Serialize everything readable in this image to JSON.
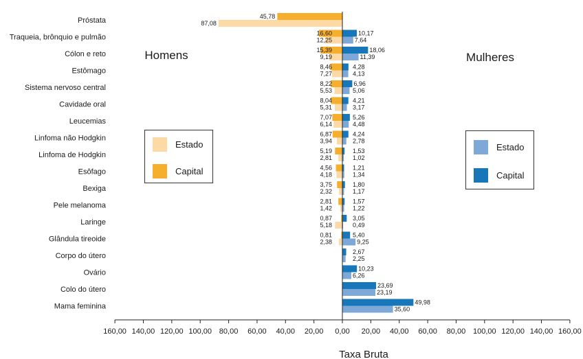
{
  "chart_data": {
    "type": "bar",
    "orientation": "horizontal-diverging",
    "categories": [
      "Próstata",
      "Traqueia, brônquio e pulmão",
      "Cólon e reto",
      "Estômago",
      "Sistema nervoso central",
      "Cavidade oral",
      "Leucemias",
      "Linfoma não Hodgkin",
      "Linfoma de Hodgkin",
      "Esôfago",
      "Bexiga",
      "Pele melanoma",
      "Laringe",
      "Glândula tireoide",
      "Corpo do útero",
      "Ovário",
      "Colo do útero",
      "Mama feminina"
    ],
    "series": [
      {
        "name": "Capital",
        "side": "Homens",
        "color": "#f6ae2d",
        "values": [
          45.78,
          16.6,
          15.39,
          8.46,
          8.22,
          8.04,
          7.07,
          6.87,
          5.19,
          4.56,
          3.75,
          2.81,
          0.87,
          0.81,
          null,
          null,
          null,
          null
        ],
        "labels": [
          "45,78",
          "16,60",
          "15,39",
          "8,46",
          "8,22",
          "8,04",
          "7,07",
          "6,87",
          "5,19",
          "4,56",
          "3,75",
          "2,81",
          "0,87",
          "0,81",
          "",
          "",
          "",
          ""
        ]
      },
      {
        "name": "Estado",
        "side": "Homens",
        "color": "#fdd9a6",
        "values": [
          87.08,
          12.25,
          9.19,
          7.27,
          5.53,
          5.31,
          6.14,
          3.94,
          2.81,
          4.18,
          2.32,
          1.42,
          5.18,
          2.38,
          null,
          null,
          null,
          null
        ],
        "labels": [
          "87,08",
          "12,25",
          "9,19",
          "7,27",
          "5,53",
          "5,31",
          "6,14",
          "3,94",
          "2,81",
          "4,18",
          "2,32",
          "1,42",
          "5,18",
          "2,38",
          "",
          "",
          "",
          ""
        ]
      },
      {
        "name": "Capital",
        "side": "Mulheres",
        "color": "#1877b8",
        "values": [
          null,
          10.17,
          18.06,
          4.28,
          6.96,
          4.21,
          5.26,
          4.24,
          1.53,
          1.21,
          1.8,
          1.57,
          3.05,
          5.4,
          2.67,
          10.23,
          23.69,
          49.98
        ],
        "labels": [
          "",
          "10,17",
          "18,06",
          "4,28",
          "6,96",
          "4,21",
          "5,26",
          "4,24",
          "1,53",
          "1,21",
          "1,80",
          "1,57",
          "3,05",
          "5,40",
          "2,67",
          "10,23",
          "23,69",
          "49,98"
        ]
      },
      {
        "name": "Estado",
        "side": "Mulheres",
        "color": "#7ea8d8",
        "values": [
          null,
          7.64,
          11.39,
          4.13,
          5.06,
          3.17,
          4.48,
          2.78,
          1.02,
          1.34,
          1.17,
          1.22,
          0.49,
          9.25,
          2.25,
          6.26,
          23.19,
          35.6
        ],
        "labels": [
          "",
          "7,64",
          "11,39",
          "4,13",
          "5,06",
          "3,17",
          "4,48",
          "2,78",
          "1,02",
          "1,34",
          "1,17",
          "1,22",
          "0,49",
          "9,25",
          "2,25",
          "6,26",
          "23,19",
          "35,60"
        ]
      }
    ],
    "xlim": [
      -160,
      160
    ],
    "xticks": [
      -160,
      -140,
      -120,
      -100,
      -80,
      -60,
      -40,
      -20,
      0,
      20,
      40,
      60,
      80,
      100,
      120,
      140,
      160
    ],
    "xtick_labels": [
      "160,00",
      "140,00",
      "120,00",
      "100,00",
      "80,00",
      "60,00",
      "40,00",
      "20,00",
      "0,00",
      "20,00",
      "40,00",
      "60,00",
      "80,00",
      "100,00",
      "120,00",
      "140,00",
      "160,00"
    ],
    "xlabel": "Taxa Bruta",
    "left_title": "Homens",
    "right_title": "Mulheres",
    "grid": false
  },
  "legend_left": {
    "items": [
      {
        "label": "Estado",
        "color": "#fdd9a6"
      },
      {
        "label": "Capital",
        "color": "#f6ae2d"
      }
    ]
  },
  "legend_right": {
    "items": [
      {
        "label": "Estado",
        "color": "#7ea8d8"
      },
      {
        "label": "Capital",
        "color": "#1877b8"
      }
    ]
  }
}
